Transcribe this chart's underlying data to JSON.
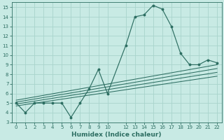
{
  "title": "",
  "xlabel": "Humidex (Indice chaleur)",
  "bg_color": "#c8eae4",
  "grid_color": "#a8d4cc",
  "line_color": "#2d6e62",
  "xlim": [
    -0.5,
    22.5
  ],
  "ylim": [
    3,
    15.5
  ],
  "xticks": [
    0,
    1,
    2,
    3,
    4,
    5,
    6,
    7,
    8,
    9,
    10,
    12,
    13,
    14,
    15,
    16,
    17,
    18,
    19,
    20,
    21,
    22
  ],
  "yticks": [
    3,
    4,
    5,
    6,
    7,
    8,
    9,
    10,
    11,
    12,
    13,
    14,
    15
  ],
  "series": [
    [
      0,
      5.0
    ],
    [
      1,
      4.0
    ],
    [
      2,
      5.0
    ],
    [
      3,
      5.0
    ],
    [
      4,
      5.0
    ],
    [
      5,
      5.0
    ],
    [
      6,
      3.5
    ],
    [
      7,
      5.0
    ],
    [
      8,
      6.5
    ],
    [
      9,
      8.5
    ],
    [
      10,
      6.0
    ],
    [
      12,
      11.0
    ],
    [
      13,
      14.0
    ],
    [
      14,
      14.2
    ],
    [
      15,
      15.2
    ],
    [
      16,
      14.8
    ],
    [
      17,
      13.0
    ],
    [
      18,
      10.2
    ],
    [
      19,
      9.0
    ],
    [
      20,
      9.0
    ],
    [
      21,
      9.5
    ],
    [
      22,
      9.2
    ]
  ],
  "linear_lines": [
    [
      [
        0,
        4.7
      ],
      [
        22,
        7.8
      ]
    ],
    [
      [
        0,
        4.9
      ],
      [
        22,
        8.2
      ]
    ],
    [
      [
        0,
        5.1
      ],
      [
        22,
        8.6
      ]
    ],
    [
      [
        0,
        5.3
      ],
      [
        22,
        9.0
      ]
    ]
  ]
}
